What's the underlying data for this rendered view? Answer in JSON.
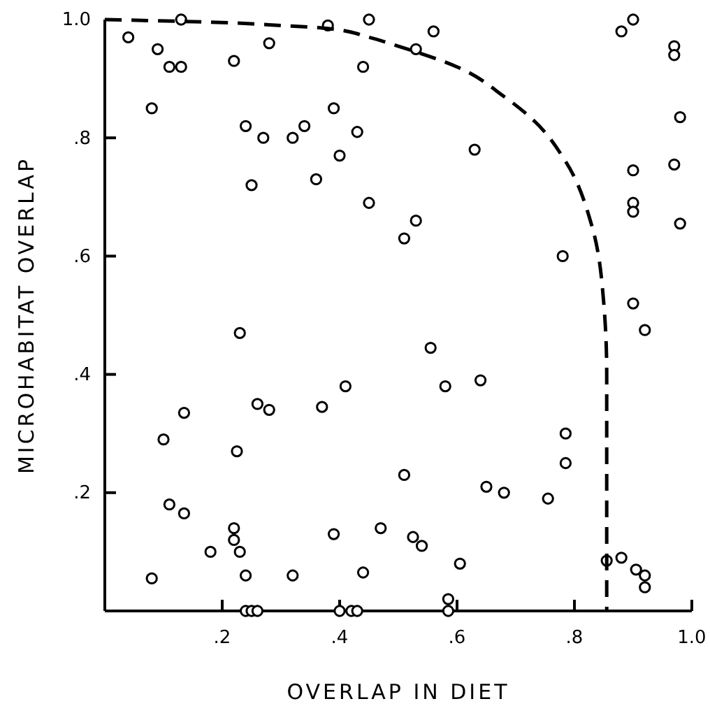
{
  "chart_data": {
    "type": "scatter",
    "xlabel": "OVERLAP IN DIET",
    "ylabel": "MICROHABITAT OVERLAP",
    "xlim": [
      0,
      1
    ],
    "ylim": [
      0,
      1
    ],
    "xticks": [
      {
        "value": 0.2,
        "label": ".2"
      },
      {
        "value": 0.4,
        "label": ".4"
      },
      {
        "value": 0.6,
        "label": ".6"
      },
      {
        "value": 0.8,
        "label": ".8"
      },
      {
        "value": 1,
        "label": "1.0"
      }
    ],
    "yticks": [
      {
        "value": 0.2,
        "label": ".2"
      },
      {
        "value": 0.4,
        "label": ".4"
      },
      {
        "value": 0.6,
        "label": ".6"
      },
      {
        "value": 0.8,
        "label": ".8"
      },
      {
        "value": 1,
        "label": "1.0"
      }
    ],
    "grid": false,
    "series": [
      {
        "color": "#000000",
        "marker": "circle",
        "x": [
          0.04,
          0.13,
          0.09,
          0.11,
          0.13,
          0.22,
          0.28,
          0.38,
          0.45,
          0.44,
          0.08,
          0.24,
          0.27,
          0.32,
          0.34,
          0.39,
          0.43,
          0.4,
          0.36,
          0.25,
          0.45,
          0.56,
          0.53,
          0.63,
          0.53,
          0.51,
          0.78,
          0.9,
          0.88,
          0.9,
          0.97,
          0.97,
          0.98,
          0.97,
          0.9,
          0.9,
          0.9,
          0.98,
          0.23,
          0.41,
          0.26,
          0.28,
          0.37,
          0.135,
          0.1,
          0.225,
          0.11,
          0.135,
          0.22,
          0.22,
          0.23,
          0.18,
          0.39,
          0.47,
          0.44,
          0.32,
          0.24,
          0.08,
          0.24,
          0.25,
          0.26,
          0.4,
          0.42,
          0.43,
          0.92,
          0.555,
          0.58,
          0.64,
          0.785,
          0.785,
          0.51,
          0.65,
          0.68,
          0.755,
          0.525,
          0.54,
          0.605,
          0.855,
          0.88,
          0.905,
          0.92,
          0.92,
          0.585,
          0.585
        ],
        "values": [
          0.97,
          1.0,
          0.95,
          0.92,
          0.92,
          0.93,
          0.96,
          0.99,
          1.0,
          0.92,
          0.85,
          0.82,
          0.8,
          0.8,
          0.82,
          0.85,
          0.81,
          0.77,
          0.73,
          0.72,
          0.69,
          0.98,
          0.95,
          0.78,
          0.66,
          0.63,
          0.6,
          0.52,
          0.98,
          1.0,
          0.955,
          0.94,
          0.835,
          0.755,
          0.745,
          0.69,
          0.675,
          0.655,
          0.47,
          0.38,
          0.35,
          0.34,
          0.345,
          0.335,
          0.29,
          0.27,
          0.18,
          0.165,
          0.14,
          0.12,
          0.1,
          0.1,
          0.13,
          0.14,
          0.065,
          0.06,
          0.06,
          0.055,
          0,
          0,
          0,
          0,
          0,
          0,
          0.475,
          0.445,
          0.38,
          0.39,
          0.3,
          0.25,
          0.23,
          0.21,
          0.2,
          0.19,
          0.125,
          0.11,
          0.08,
          0.085,
          0.09,
          0.07,
          0.06,
          0.04,
          0.02,
          0
        ]
      },
      {
        "type": "line",
        "color": "#000000",
        "line_style": "dashed",
        "marker": "none",
        "x": [
          0,
          0.2,
          0.3,
          0.38,
          0.45,
          0.5,
          0.6,
          0.68,
          0.73,
          0.785,
          0.83,
          0.85,
          0.855,
          0.855,
          0.855
        ],
        "values": [
          1,
          0.995,
          0.99,
          0.985,
          0.97,
          0.955,
          0.92,
          0.87,
          0.83,
          0.76,
          0.65,
          0.52,
          0.4,
          0.2,
          0
        ]
      }
    ]
  }
}
